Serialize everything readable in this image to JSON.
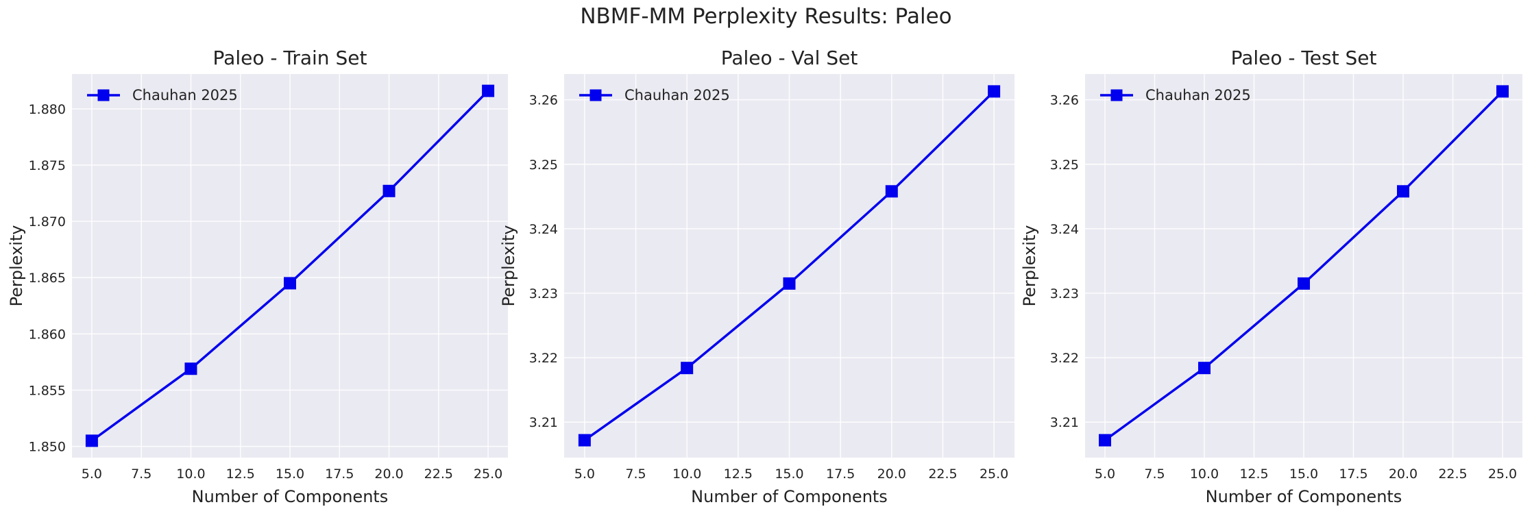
{
  "figure": {
    "title": "NBMF-MM Perplexity Results: Paleo"
  },
  "colors": {
    "line": "#0000ee",
    "plot_bg": "#eaeaf2",
    "grid": "#ffffff",
    "text": "#222222"
  },
  "chart_data": [
    {
      "type": "line",
      "title": "Paleo - Train Set",
      "xlabel": "Number of Components",
      "ylabel": "Perplexity",
      "x": [
        5,
        10,
        15,
        20,
        25
      ],
      "series": [
        {
          "name": "Chauhan 2025",
          "values": [
            1.8505,
            1.8569,
            1.8645,
            1.8727,
            1.8816
          ],
          "marker": "square"
        }
      ],
      "xlim": [
        4.0,
        26.0
      ],
      "ylim": [
        1.849,
        1.8831
      ],
      "xticks": [
        5.0,
        7.5,
        10.0,
        12.5,
        15.0,
        17.5,
        20.0,
        22.5,
        25.0
      ],
      "xtick_labels": [
        "5.0",
        "7.5",
        "10.0",
        "12.5",
        "15.0",
        "17.5",
        "20.0",
        "22.5",
        "25.0"
      ],
      "yticks": [
        1.85,
        1.855,
        1.86,
        1.865,
        1.87,
        1.875,
        1.88
      ],
      "ytick_labels": [
        "1.850",
        "1.855",
        "1.860",
        "1.865",
        "1.870",
        "1.875",
        "1.880"
      ],
      "grid": true,
      "legend": "upper-left"
    },
    {
      "type": "line",
      "title": "Paleo - Val Set",
      "xlabel": "Number of Components",
      "ylabel": "Perplexity",
      "x": [
        5,
        10,
        15,
        20,
        25
      ],
      "series": [
        {
          "name": "Chauhan 2025",
          "values": [
            3.2072,
            3.2184,
            3.2315,
            3.2458,
            3.2613
          ],
          "marker": "square"
        }
      ],
      "xlim": [
        4.0,
        26.0
      ],
      "ylim": [
        3.2045,
        3.264
      ],
      "xticks": [
        5.0,
        7.5,
        10.0,
        12.5,
        15.0,
        17.5,
        20.0,
        22.5,
        25.0
      ],
      "xtick_labels": [
        "5.0",
        "7.5",
        "10.0",
        "12.5",
        "15.0",
        "17.5",
        "20.0",
        "22.5",
        "25.0"
      ],
      "yticks": [
        3.21,
        3.22,
        3.23,
        3.24,
        3.25,
        3.26
      ],
      "ytick_labels": [
        "3.21",
        "3.22",
        "3.23",
        "3.24",
        "3.25",
        "3.26"
      ],
      "grid": true,
      "legend": "upper-left"
    },
    {
      "type": "line",
      "title": "Paleo - Test Set",
      "xlabel": "Number of Components",
      "ylabel": "Perplexity",
      "x": [
        5,
        10,
        15,
        20,
        25
      ],
      "series": [
        {
          "name": "Chauhan 2025",
          "values": [
            3.2072,
            3.2184,
            3.2315,
            3.2458,
            3.2613
          ],
          "marker": "square"
        }
      ],
      "xlim": [
        4.0,
        26.0
      ],
      "ylim": [
        3.2045,
        3.264
      ],
      "xticks": [
        5.0,
        7.5,
        10.0,
        12.5,
        15.0,
        17.5,
        20.0,
        22.5,
        25.0
      ],
      "xtick_labels": [
        "5.0",
        "7.5",
        "10.0",
        "12.5",
        "15.0",
        "17.5",
        "20.0",
        "22.5",
        "25.0"
      ],
      "yticks": [
        3.21,
        3.22,
        3.23,
        3.24,
        3.25,
        3.26
      ],
      "ytick_labels": [
        "3.21",
        "3.22",
        "3.23",
        "3.24",
        "3.25",
        "3.26"
      ],
      "grid": true,
      "legend": "upper-left"
    }
  ]
}
